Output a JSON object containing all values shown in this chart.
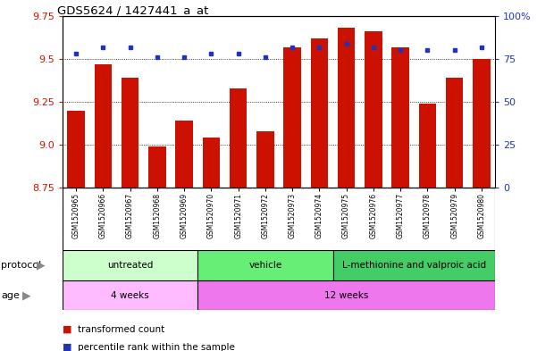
{
  "title": "GDS5624 / 1427441_a_at",
  "samples": [
    "GSM1520965",
    "GSM1520966",
    "GSM1520967",
    "GSM1520968",
    "GSM1520969",
    "GSM1520970",
    "GSM1520971",
    "GSM1520972",
    "GSM1520973",
    "GSM1520974",
    "GSM1520975",
    "GSM1520976",
    "GSM1520977",
    "GSM1520978",
    "GSM1520979",
    "GSM1520980"
  ],
  "transformed_count": [
    9.2,
    9.47,
    9.39,
    8.99,
    9.14,
    9.04,
    9.33,
    9.08,
    9.57,
    9.62,
    9.68,
    9.66,
    9.57,
    9.24,
    9.39,
    9.5
  ],
  "percentile_rank": [
    78,
    82,
    82,
    76,
    76,
    78,
    78,
    76,
    82,
    82,
    84,
    82,
    80,
    80,
    80,
    82
  ],
  "ylim_left": [
    8.75,
    9.75
  ],
  "ylim_right": [
    0,
    100
  ],
  "yticks_left": [
    8.75,
    9.0,
    9.25,
    9.5,
    9.75
  ],
  "yticks_right": [
    0,
    25,
    50,
    75,
    100
  ],
  "bar_color": "#cc1100",
  "dot_color": "#2233bb",
  "protocol_groups": [
    {
      "label": "untreated",
      "start": 0,
      "end": 5,
      "color": "#ccffcc"
    },
    {
      "label": "vehicle",
      "start": 5,
      "end": 10,
      "color": "#66ee77"
    },
    {
      "label": "L-methionine and valproic acid",
      "start": 10,
      "end": 16,
      "color": "#44cc66"
    }
  ],
  "age_groups": [
    {
      "label": "4 weeks",
      "start": 0,
      "end": 5,
      "color": "#ffbbff"
    },
    {
      "label": "12 weeks",
      "start": 5,
      "end": 16,
      "color": "#ee77ee"
    }
  ],
  "protocol_label": "protocol",
  "age_label": "age",
  "legend_red": "transformed count",
  "legend_blue": "percentile rank within the sample",
  "xtick_bg": "#cccccc"
}
